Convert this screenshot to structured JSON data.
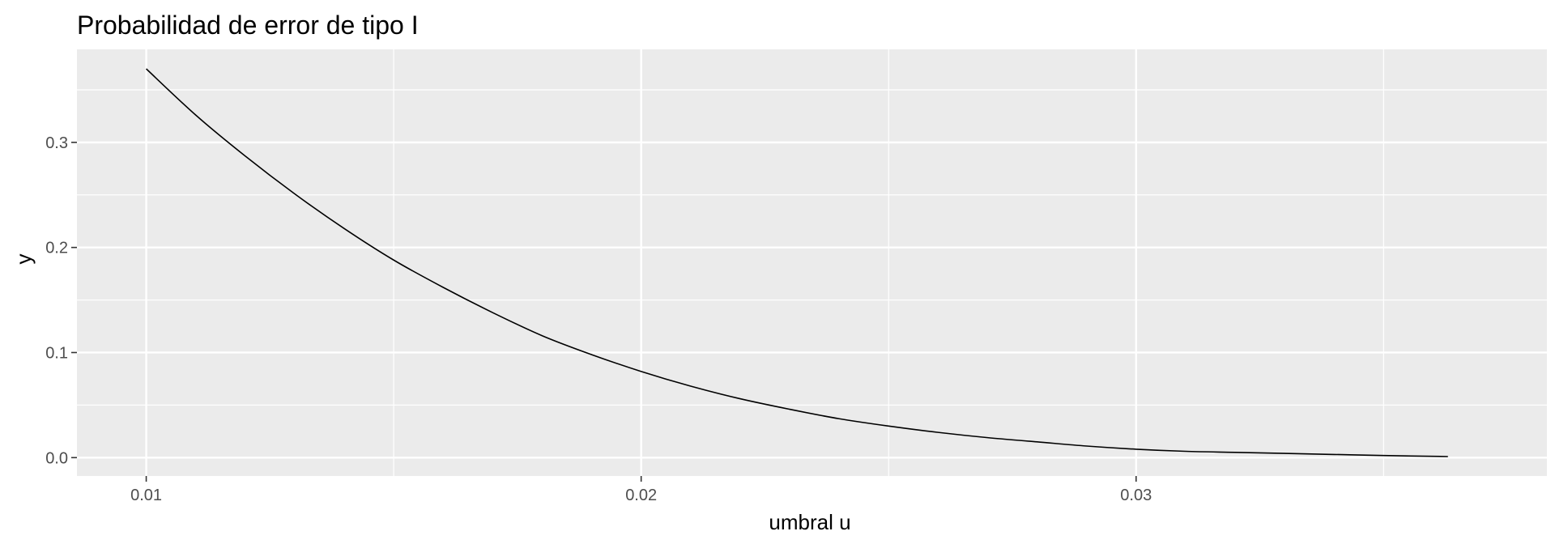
{
  "chart_data": {
    "type": "line",
    "title": "Probabilidad de error de tipo I",
    "xlabel": "umbral u",
    "ylabel": "y",
    "xlim": [
      0.0086,
      0.0383
    ],
    "ylim": [
      -0.0175,
      0.3885
    ],
    "x_ticks": [
      0.01,
      0.02,
      0.03
    ],
    "x_tick_labels": [
      "0.01",
      "0.02",
      "0.03"
    ],
    "y_ticks": [
      0.0,
      0.1,
      0.2,
      0.3
    ],
    "y_tick_labels": [
      "0.0",
      "0.1",
      "0.2",
      "0.3"
    ],
    "grid": true,
    "legend": "none",
    "colors": {
      "panel_background": "#ebebeb",
      "grid_line": "#ffffff",
      "series_line": "#000000",
      "tick_label": "#4d4d4d"
    },
    "series": [
      {
        "x": [
          0.01,
          0.011,
          0.012,
          0.013,
          0.014,
          0.015,
          0.016,
          0.017,
          0.018,
          0.019,
          0.02,
          0.021,
          0.022,
          0.023,
          0.024,
          0.025,
          0.026,
          0.027,
          0.028,
          0.029,
          0.03,
          0.031,
          0.032,
          0.033,
          0.034,
          0.035,
          0.0363
        ],
        "y": [
          0.37,
          0.326,
          0.287,
          0.251,
          0.218,
          0.188,
          0.162,
          0.138,
          0.116,
          0.098,
          0.082,
          0.068,
          0.056,
          0.046,
          0.037,
          0.03,
          0.024,
          0.019,
          0.015,
          0.011,
          0.008,
          0.006,
          0.005,
          0.004,
          0.003,
          0.002,
          0.001
        ]
      }
    ]
  }
}
